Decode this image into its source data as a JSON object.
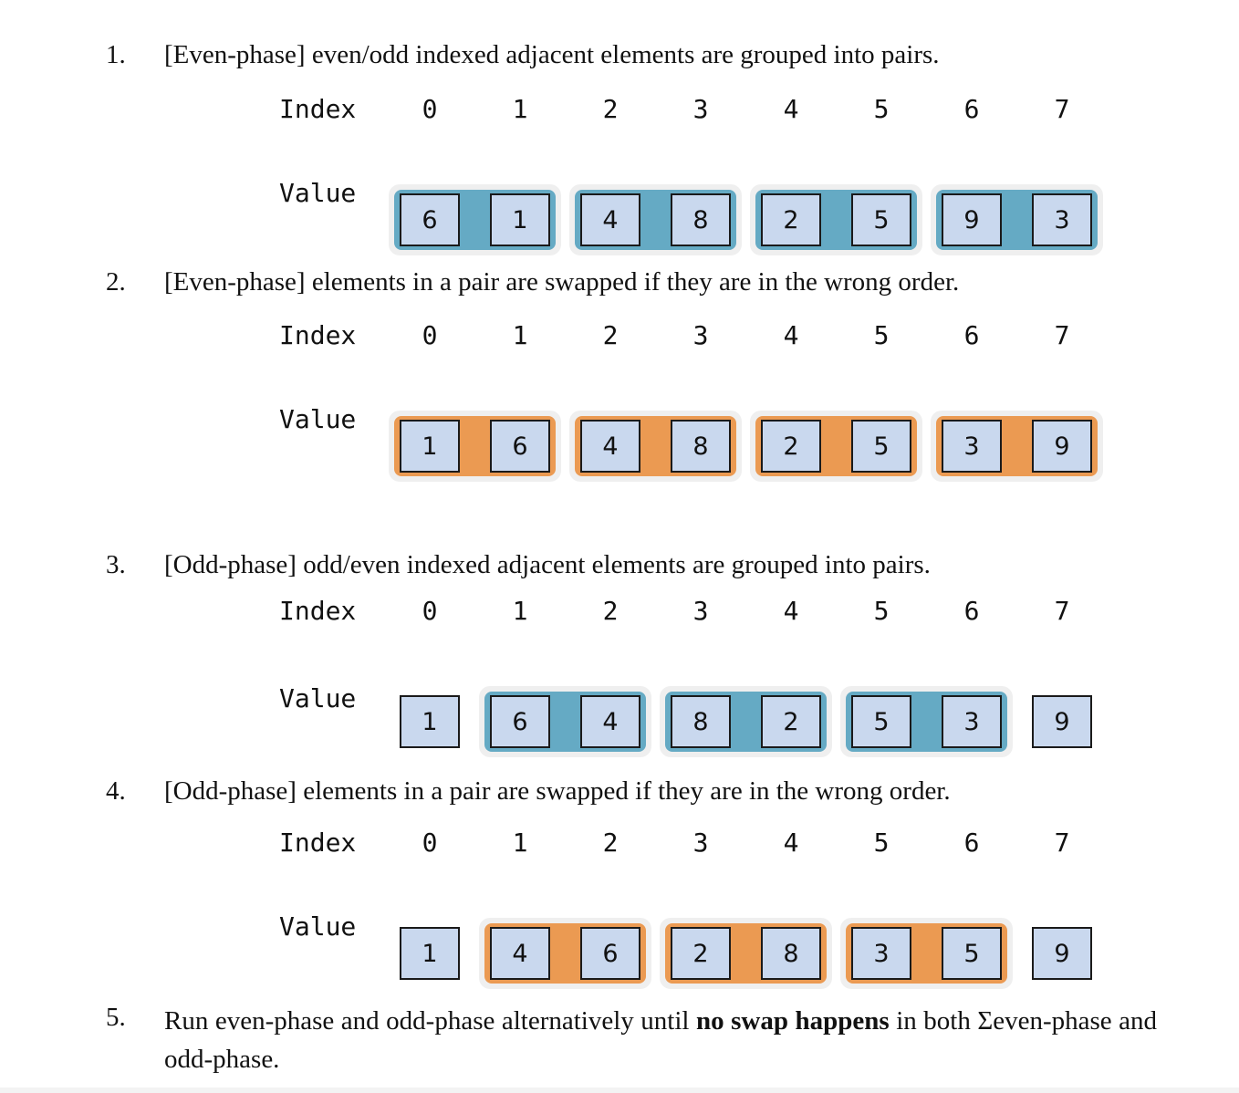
{
  "colors": {
    "pair_blue": "#65aac4",
    "pair_orange": "#eb9a52",
    "pair_halo": "#efefef",
    "cell_fill": "#c9d8ee",
    "cell_border": "#1a1a1a"
  },
  "labels": {
    "index": "Index",
    "value": "Value"
  },
  "steps": [
    {
      "number": "1.",
      "text": "[Even-phase] even/odd indexed adjacent elements are grouped into pairs.",
      "indices": [
        "0",
        "1",
        "2",
        "3",
        "4",
        "5",
        "6",
        "7"
      ],
      "values": [
        "6",
        "1",
        "4",
        "8",
        "2",
        "5",
        "9",
        "3"
      ],
      "pairing": "even",
      "highlight": "blue"
    },
    {
      "number": "2.",
      "text": "[Even-phase] elements in a pair are swapped if they are in the wrong order.",
      "indices": [
        "0",
        "1",
        "2",
        "3",
        "4",
        "5",
        "6",
        "7"
      ],
      "values": [
        "1",
        "6",
        "4",
        "8",
        "2",
        "5",
        "3",
        "9"
      ],
      "pairing": "even",
      "highlight": "orange"
    },
    {
      "number": "3.",
      "text": "[Odd-phase] odd/even indexed adjacent elements are grouped into pairs.",
      "indices": [
        "0",
        "1",
        "2",
        "3",
        "4",
        "5",
        "6",
        "7"
      ],
      "values": [
        "1",
        "6",
        "4",
        "8",
        "2",
        "5",
        "3",
        "9"
      ],
      "pairing": "odd",
      "highlight": "blue"
    },
    {
      "number": "4.",
      "text": "[Odd-phase] elements in a pair are swapped if they are in the wrong order.",
      "indices": [
        "0",
        "1",
        "2",
        "3",
        "4",
        "5",
        "6",
        "7"
      ],
      "values": [
        "1",
        "4",
        "6",
        "2",
        "8",
        "3",
        "5",
        "9"
      ],
      "pairing": "odd",
      "highlight": "orange"
    }
  ],
  "step5": {
    "number": "5.",
    "text_before": "Run even-phase and odd-phase alternatively until ",
    "bold": "no swap happens",
    "text_after": " in both Σeven-phase and odd-phase."
  }
}
